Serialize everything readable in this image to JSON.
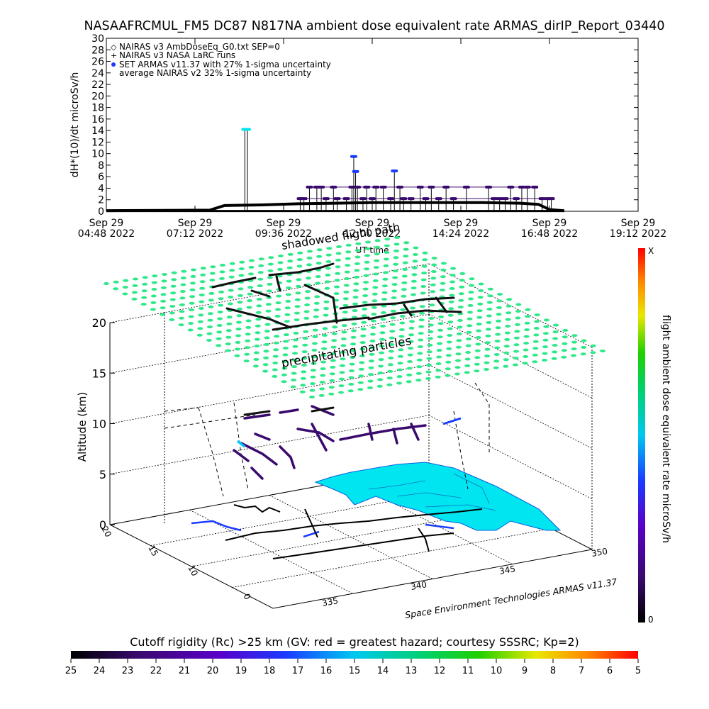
{
  "title": "NASAAFRCMUL_FM5 DC87 N817NA ambient dose equivalent rate ARMAS_dirIP_Report_03440",
  "top_chart": {
    "ylabel": "dH*(10)/dt microSv/h",
    "xlabel": "UT time",
    "y_ticks": [
      "0",
      "2",
      "4",
      "6",
      "8",
      "10",
      "12",
      "14",
      "16",
      "18",
      "20",
      "22",
      "24",
      "26",
      "28",
      "30"
    ],
    "x_ticks": [
      {
        "line1": "Sep 29",
        "line2": "04:48 2022"
      },
      {
        "line1": "Sep 29",
        "line2": "07:12 2022"
      },
      {
        "line1": "Sep 29",
        "line2": "09:36 2022"
      },
      {
        "line1": "Sep 29",
        "line2": "12:00 2022"
      },
      {
        "line1": "Sep 29",
        "line2": "14:24 2022"
      },
      {
        "line1": "Sep 29",
        "line2": "16:48 2022"
      },
      {
        "line1": "Sep 29",
        "line2": "19:12 2022"
      }
    ],
    "legend": [
      "NAIRAS v3 AmbDoseEq_G0.txt SEP=0",
      "NAIRAS v3 NASA LaRC runs",
      "SET ARMAS v11.37 with 27% 1-sigma uncertainty",
      "average NAIRAS v2 32% 1-sigma uncertainty"
    ],
    "overlay_text": [
      "shadowed flight path"
    ]
  },
  "chart_data": [
    {
      "type": "scatter",
      "title": "NASAAFRCMUL_FM5 DC87 N817NA ambient dose equivalent rate ARMAS_dirIP_Report_03440",
      "xlabel": "UT time",
      "ylabel": "dH*(10)/dt microSv/h",
      "x_unit": "hours UT, Sep 29 2022",
      "xlim": [
        4.8,
        19.2
      ],
      "ylim": [
        0,
        30
      ],
      "series": [
        {
          "name": "SET ARMAS v11.37 with 27% 1-sigma uncertainty",
          "x": [
            8.55,
            8.62,
            10.05,
            10.15,
            10.3,
            10.5,
            10.62,
            10.75,
            10.95,
            11.05,
            11.3,
            11.45,
            11.5,
            11.55,
            11.6,
            11.75,
            11.85,
            12.0,
            12.1,
            12.3,
            12.5,
            12.6,
            12.75,
            12.85,
            13.05,
            13.3,
            13.45,
            13.6,
            13.8,
            14.0,
            14.2,
            14.55,
            15.15,
            15.3,
            15.45,
            15.6,
            15.75,
            15.9,
            16.05,
            16.2,
            16.4,
            16.6,
            16.75,
            16.85
          ],
          "y": [
            14.2,
            14.2,
            2.2,
            2.2,
            4.2,
            4.2,
            4.2,
            2.2,
            4.2,
            2.2,
            2.2,
            4.2,
            9.5,
            6.9,
            4.2,
            2.2,
            4.2,
            2.2,
            4.2,
            4.2,
            2.2,
            7.0,
            4.2,
            2.2,
            2.2,
            4.2,
            2.2,
            4.2,
            2.2,
            4.2,
            2.2,
            4.2,
            4.2,
            2.2,
            2.2,
            2.2,
            4.2,
            2.2,
            4.2,
            4.2,
            4.2,
            2.2,
            2.2,
            2.2
          ],
          "color": "#3a0a6e"
        },
        {
          "name": "NAIRAS v3 AmbDoseEq_G0.txt SEP=0",
          "x": [
            4.8,
            7.6,
            8.0,
            9.0,
            10.0,
            11.0,
            12.0,
            13.0,
            14.0,
            15.0,
            16.0,
            16.5,
            16.8,
            17.2
          ],
          "y": [
            0.1,
            0.2,
            1.0,
            1.1,
            1.3,
            1.4,
            1.5,
            1.5,
            1.5,
            1.5,
            1.4,
            1.2,
            0.3,
            0.1
          ]
        }
      ]
    },
    {
      "type": "scatter",
      "title": "",
      "zlabel": "Altitude (km)",
      "z_ticks": [
        "0",
        "5",
        "10",
        "15",
        "20"
      ],
      "lat_ticks": [
        "0",
        "10",
        "15",
        "20"
      ],
      "lon_ticks": [
        "335",
        "340",
        "345",
        "350"
      ],
      "annotations": [
        "precipitating particles"
      ],
      "credit": "Space Environment Technologies ARMAS v11.37",
      "colorbar": {
        "label": "flight ambient dose equivalent rate microSv/h",
        "top_label": "X",
        "bottom_label": "0"
      },
      "flight_track_rates": [
        {
          "name": "segment 1",
          "values": [
            2.2,
            4.2,
            2.2,
            4.2,
            9.5,
            4.2,
            2.2,
            7.0,
            4.2,
            2.2
          ]
        }
      ]
    }
  ],
  "cutoff_bar": {
    "label": "Cutoff rigidity (Rc) >25 km (GV: red = greatest hazard; courtesy SSSRC; Kp=2)",
    "ticks": [
      "25",
      "24",
      "23",
      "22",
      "21",
      "20",
      "19",
      "18",
      "17",
      "16",
      "15",
      "14",
      "13",
      "12",
      "11",
      "10",
      "9",
      "8",
      "7",
      "6",
      "5"
    ]
  },
  "colors": {
    "precipitating_particles": "#2ee88a",
    "map_land": "#00e5f0",
    "track": "#3a0a6e"
  }
}
